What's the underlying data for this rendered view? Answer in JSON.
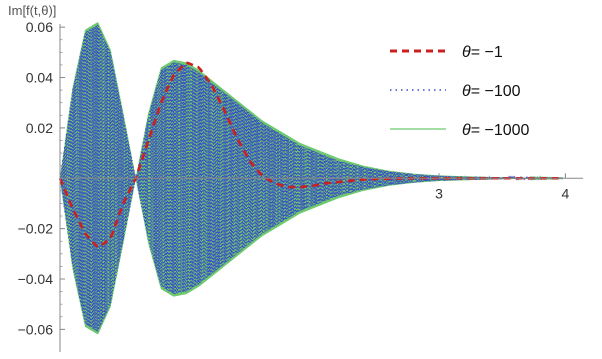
{
  "chart_data": {
    "type": "line",
    "title": "",
    "ylabel": "Im[f(t,θ)]",
    "xlabel": "",
    "xlim": [
      0,
      4.1
    ],
    "ylim": [
      -0.067,
      0.068
    ],
    "x_ticks": [
      {
        "value": 3,
        "label": "3"
      },
      {
        "value": 4,
        "label": "4"
      }
    ],
    "y_ticks": [
      {
        "value": 0.06,
        "label": "0.06"
      },
      {
        "value": 0.04,
        "label": "0.04"
      },
      {
        "value": 0.02,
        "label": "0.02"
      },
      {
        "value": -0.02,
        "label": "-0.02"
      },
      {
        "value": -0.04,
        "label": "-0.04"
      },
      {
        "value": -0.06,
        "label": "-0.06"
      }
    ],
    "legend_position": "top-right",
    "series": [
      {
        "name": "θ= -1",
        "theta_label": "θ",
        "value_label": "= -1",
        "color": "#cc1f1f",
        "style": "dashed",
        "x": [
          0,
          0.1,
          0.2,
          0.3,
          0.4,
          0.5,
          0.6,
          0.7,
          0.8,
          0.9,
          1.0,
          1.1,
          1.2,
          1.3,
          1.4,
          1.5,
          1.6,
          1.7,
          1.8,
          1.9,
          2.0,
          2.1,
          2.2,
          2.3,
          2.4,
          2.5,
          2.6,
          2.7,
          2.8,
          3.0,
          3.2,
          3.4,
          3.6,
          3.8,
          4.0
        ],
        "y": [
          0,
          -0.012,
          -0.022,
          -0.0275,
          -0.024,
          -0.01,
          0.0,
          0.015,
          0.03,
          0.041,
          0.046,
          0.044,
          0.037,
          0.027,
          0.016,
          0.007,
          0.001,
          -0.002,
          -0.0035,
          -0.0035,
          -0.003,
          -0.002,
          -0.0015,
          -0.001,
          -0.0005,
          -0.0003,
          -0.0002,
          -0.0001,
          0,
          0,
          0,
          0,
          0,
          0,
          0
        ]
      },
      {
        "name": "θ= -100",
        "theta_label": "θ",
        "value_label": "= -100",
        "color": "#3a4fc4",
        "style": "dotted",
        "envelope_x": [
          0,
          0.1,
          0.2,
          0.3,
          0.4,
          0.5,
          0.6,
          0.7,
          0.8,
          0.9,
          1.0,
          1.1,
          1.2,
          1.3,
          1.4,
          1.5,
          1.6,
          1.7,
          1.8,
          1.9,
          2.0,
          2.2,
          2.4,
          2.6,
          2.8,
          3.0,
          3.2,
          3.4,
          3.6,
          3.8,
          4.0
        ],
        "envelope_y": [
          0,
          0.035,
          0.058,
          0.061,
          0.05,
          0.025,
          0.0,
          0.025,
          0.043,
          0.046,
          0.045,
          0.042,
          0.038,
          0.034,
          0.03,
          0.026,
          0.022,
          0.019,
          0.016,
          0.013,
          0.011,
          0.007,
          0.0045,
          0.0028,
          0.0017,
          0.001,
          0.0007,
          0.0005,
          0.0003,
          0.0002,
          0.0001
        ]
      },
      {
        "name": "θ= -1000",
        "theta_label": "θ",
        "value_label": "= -1000",
        "color": "#6fc96f",
        "style": "solid",
        "envelope_x": [
          0,
          0.1,
          0.2,
          0.3,
          0.4,
          0.5,
          0.6,
          0.7,
          0.8,
          0.9,
          1.0,
          1.1,
          1.2,
          1.3,
          1.4,
          1.5,
          1.6,
          1.7,
          1.8,
          1.9,
          2.0,
          2.2,
          2.4,
          2.6,
          2.8,
          3.0,
          3.2,
          3.4,
          3.6,
          3.8,
          4.0
        ],
        "envelope_y": [
          0,
          0.036,
          0.059,
          0.062,
          0.051,
          0.026,
          0.0,
          0.026,
          0.044,
          0.047,
          0.046,
          0.043,
          0.039,
          0.035,
          0.031,
          0.027,
          0.023,
          0.02,
          0.017,
          0.014,
          0.012,
          0.008,
          0.005,
          0.003,
          0.0018,
          0.0011,
          0.0008,
          0.0005,
          0.0003,
          0.0002,
          0.0001
        ]
      }
    ],
    "colors": {
      "axis": "#888888",
      "tick": "#888888"
    }
  }
}
